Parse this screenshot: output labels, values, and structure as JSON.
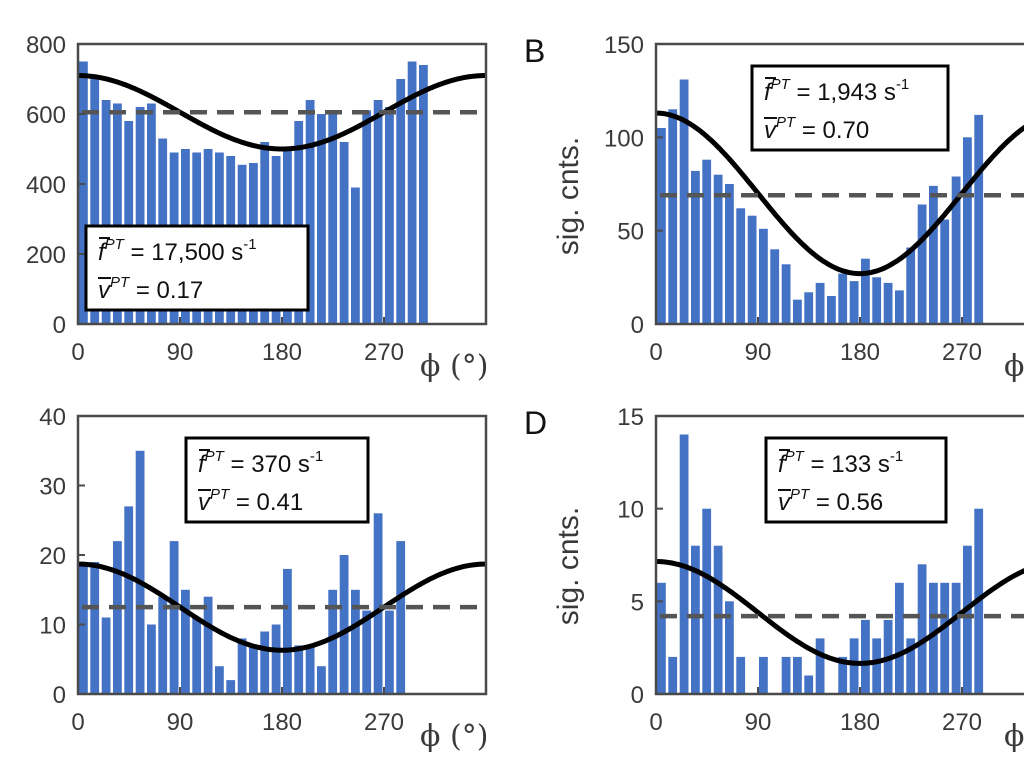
{
  "panels": [
    {
      "label": "",
      "ylabel": "",
      "xlabel": "ϕ (°)",
      "annotation": {
        "f_value": "17,500 s",
        "f_exp": "-1",
        "v_value": "0.17"
      },
      "colors": {
        "bar": "#4472c4",
        "fit": "#000000",
        "mean": "#555555"
      }
    },
    {
      "label": "B",
      "ylabel": "sig. cnts.",
      "xlabel": "ϕ",
      "annotation": {
        "f_value": "1,943 s",
        "f_exp": "-1",
        "v_value": "0.70"
      },
      "colors": {
        "bar": "#4472c4",
        "fit": "#000000",
        "mean": "#555555"
      }
    },
    {
      "label": "",
      "ylabel": "",
      "xlabel": "ϕ (°)",
      "annotation": {
        "f_value": "370 s",
        "f_exp": "-1",
        "v_value": "0.41"
      },
      "colors": {
        "bar": "#4472c4",
        "fit": "#000000",
        "mean": "#555555"
      }
    },
    {
      "label": "D",
      "ylabel": "sig. cnts.",
      "xlabel": "ϕ",
      "annotation": {
        "f_value": "133 s",
        "f_exp": "-1",
        "v_value": "0.56"
      },
      "colors": {
        "bar": "#4472c4",
        "fit": "#000000",
        "mean": "#555555"
      }
    }
  ],
  "chart_data": [
    {
      "type": "bar",
      "x_start": 0,
      "bin_width": 10,
      "xlim": [
        0,
        360
      ],
      "xticks": [
        0,
        90,
        180,
        270
      ],
      "ylim": [
        0,
        800
      ],
      "yticks": [
        0,
        200,
        400,
        600,
        800
      ],
      "values": [
        750,
        710,
        640,
        630,
        580,
        620,
        630,
        530,
        490,
        500,
        490,
        500,
        490,
        480,
        455,
        460,
        520,
        480,
        500,
        580,
        640,
        600,
        610,
        520,
        390,
        610,
        640,
        620,
        700,
        750,
        740
      ],
      "fit": {
        "mean": 605,
        "amplitude": 105,
        "phase_deg": 0
      },
      "mean_line": 605
    },
    {
      "type": "bar",
      "x_start": 0,
      "bin_width": 10,
      "xlim": [
        0,
        330
      ],
      "xticks": [
        0,
        90,
        180,
        270
      ],
      "ylim": [
        0,
        150
      ],
      "yticks": [
        0,
        50,
        100,
        150
      ],
      "values": [
        105,
        115,
        131,
        82,
        88,
        80,
        75,
        62,
        58,
        51,
        40,
        32,
        13,
        17,
        22,
        15,
        27,
        23,
        35,
        25,
        22,
        18,
        41,
        64,
        74,
        56,
        79,
        100,
        112
      ],
      "fit": {
        "mean": 70,
        "amplitude": 43,
        "phase_deg": 0
      },
      "mean_line": 69
    },
    {
      "type": "bar",
      "x_start": 0,
      "bin_width": 10,
      "xlim": [
        0,
        360
      ],
      "xticks": [
        0,
        90,
        180,
        270
      ],
      "ylim": [
        0,
        40
      ],
      "yticks": [
        0,
        10,
        20,
        30,
        40
      ],
      "values": [
        19,
        19,
        11,
        22,
        27,
        35,
        10,
        14,
        22,
        15,
        11,
        14,
        4,
        2,
        8,
        7,
        9,
        10,
        18,
        7,
        7,
        4,
        15,
        20,
        15,
        12,
        26,
        12,
        22
      ],
      "fit": {
        "mean": 12.5,
        "amplitude": 6.2,
        "phase_deg": 0
      },
      "mean_line": 12.5
    },
    {
      "type": "bar",
      "x_start": 0,
      "bin_width": 10,
      "xlim": [
        0,
        330
      ],
      "xticks": [
        0,
        90,
        180,
        270
      ],
      "ylim": [
        0,
        15
      ],
      "yticks": [
        0,
        5,
        10,
        15
      ],
      "values": [
        6,
        2,
        14,
        8,
        10,
        8,
        5,
        2,
        0,
        2,
        0,
        2,
        2,
        1,
        3,
        0,
        2,
        3,
        4,
        3,
        4,
        6,
        3,
        7,
        6,
        6,
        6,
        8,
        10
      ],
      "fit": {
        "mean": 4.4,
        "amplitude": 2.75,
        "phase_deg": 0
      },
      "mean_line": 4.2
    }
  ]
}
